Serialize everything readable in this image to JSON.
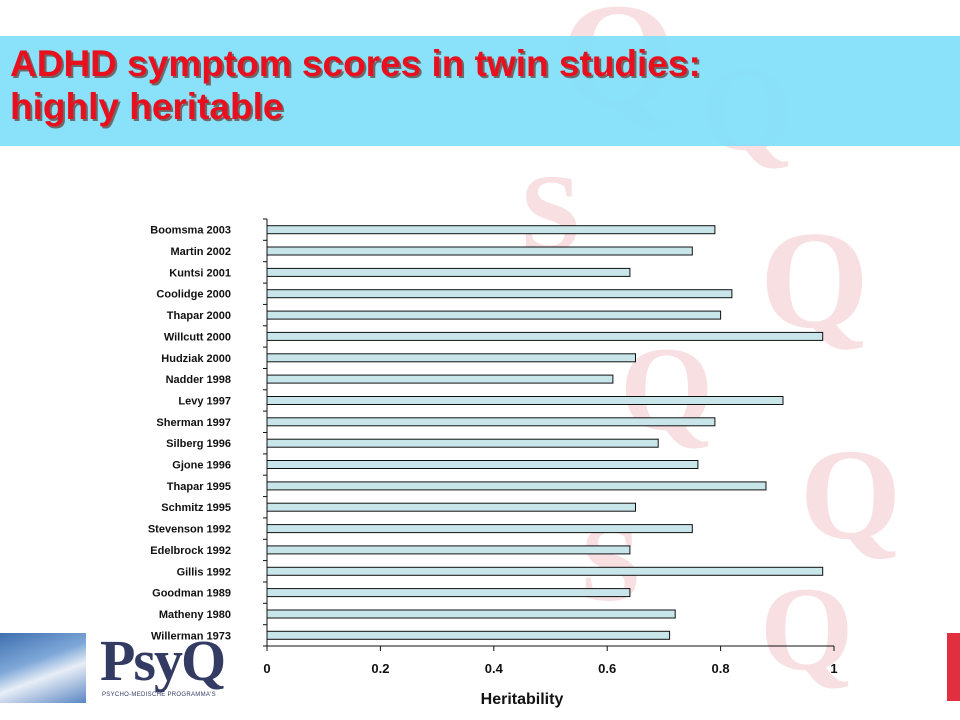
{
  "slide": {
    "title_line1": "ADHD symptom scores in twin studies:",
    "title_line2": "highly heritable"
  },
  "logo": {
    "word": "PsyQ",
    "subtitle": "PSYCHO-MEDISCHE PROGRAMMA'S"
  },
  "colors": {
    "title_text": "#e8101e",
    "title_band": "#80e0fa",
    "bar_fill": "#c8e6ea"
  },
  "chart_data": {
    "type": "bar",
    "orientation": "horizontal",
    "categories": [
      "Boomsma 2003",
      "Martin 2002",
      "Kuntsi 2001",
      "Coolidge 2000",
      "Thapar 2000",
      "Willcutt 2000",
      "Hudziak 2000",
      "Nadder 1998",
      "Levy 1997",
      "Sherman 1997",
      "Silberg 1996",
      "Gjone 1996",
      "Thapar 1995",
      "Schmitz 1995",
      "Stevenson 1992",
      "Edelbrock 1992",
      "Gillis 1992",
      "Goodman 1989",
      "Matheny 1980",
      "Willerman 1973"
    ],
    "values": [
      0.79,
      0.75,
      0.64,
      0.82,
      0.8,
      0.98,
      0.65,
      0.61,
      0.91,
      0.79,
      0.69,
      0.76,
      0.88,
      0.65,
      0.75,
      0.64,
      0.98,
      0.64,
      0.72,
      0.71
    ],
    "xlabel": "Heritability",
    "xlim": [
      0,
      1
    ],
    "xticks": [
      0,
      0.2,
      0.4,
      0.6,
      0.8,
      1
    ],
    "xtick_labels": [
      "0",
      "0.2",
      "0.4",
      "0.6",
      "0.8",
      "1"
    ],
    "grid": false,
    "legend": "none"
  }
}
